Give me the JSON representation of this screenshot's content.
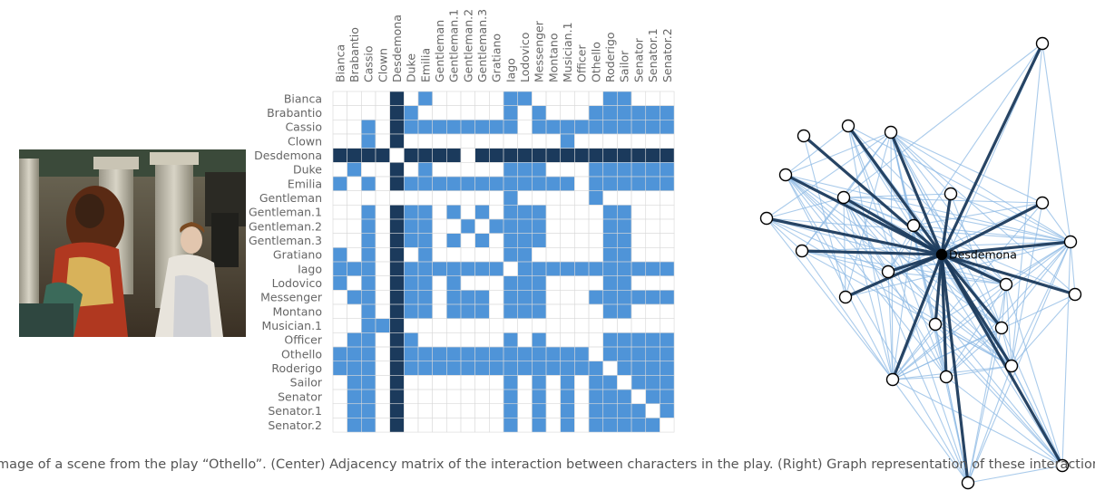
{
  "caption": "mage of a scene from the play “Othello”. (Center) Adjacency matrix of the interaction between characters in the play. (Right) Graph representation of these interactions.",
  "colors": {
    "cell": "#4f94d8",
    "highlight": "#1b3a5c",
    "empty": "#ffffff",
    "grid": "#d8d8d8",
    "label": "#666666",
    "edge": "#8db9e4"
  },
  "highlighted_node": "Desdemona",
  "characters": [
    "Bianca",
    "Brabantio",
    "Cassio",
    "Clown",
    "Desdemona",
    "Duke",
    "Emilia",
    "Gentleman",
    "Gentleman.1",
    "Gentleman.2",
    "Gentleman.3",
    "Gratiano",
    "Iago",
    "Lodovico",
    "Messenger",
    "Montano",
    "Musician.1",
    "Officer",
    "Othello",
    "Roderigo",
    "Sailor",
    "Senator",
    "Senator.1",
    "Senator.2"
  ],
  "adjacency": [
    "000010100000110000011000",
    "000011000000101000111111",
    "001011111111101111111111",
    "001010000000000010000000",
    "111101111011111111111111",
    "010010100000111000111111",
    "101011111111111110111111",
    "000000000000100000100000",
    "001011101010111000011000",
    "001011100101111000011000",
    "001011101010111000011000",
    "101010100000110000011000",
    "111011111111011111111111",
    "101011101000111000011000",
    "011011101110111000111111",
    "001011101110111000011000",
    "001110000000000000000000",
    "011011000000101000011111",
    "111011111111111111011111",
    "111011111111111111101111",
    "011010000000101010110111",
    "011010000000101010111011",
    "011010000000101010111101",
    "011010000000101010111110"
  ]
}
